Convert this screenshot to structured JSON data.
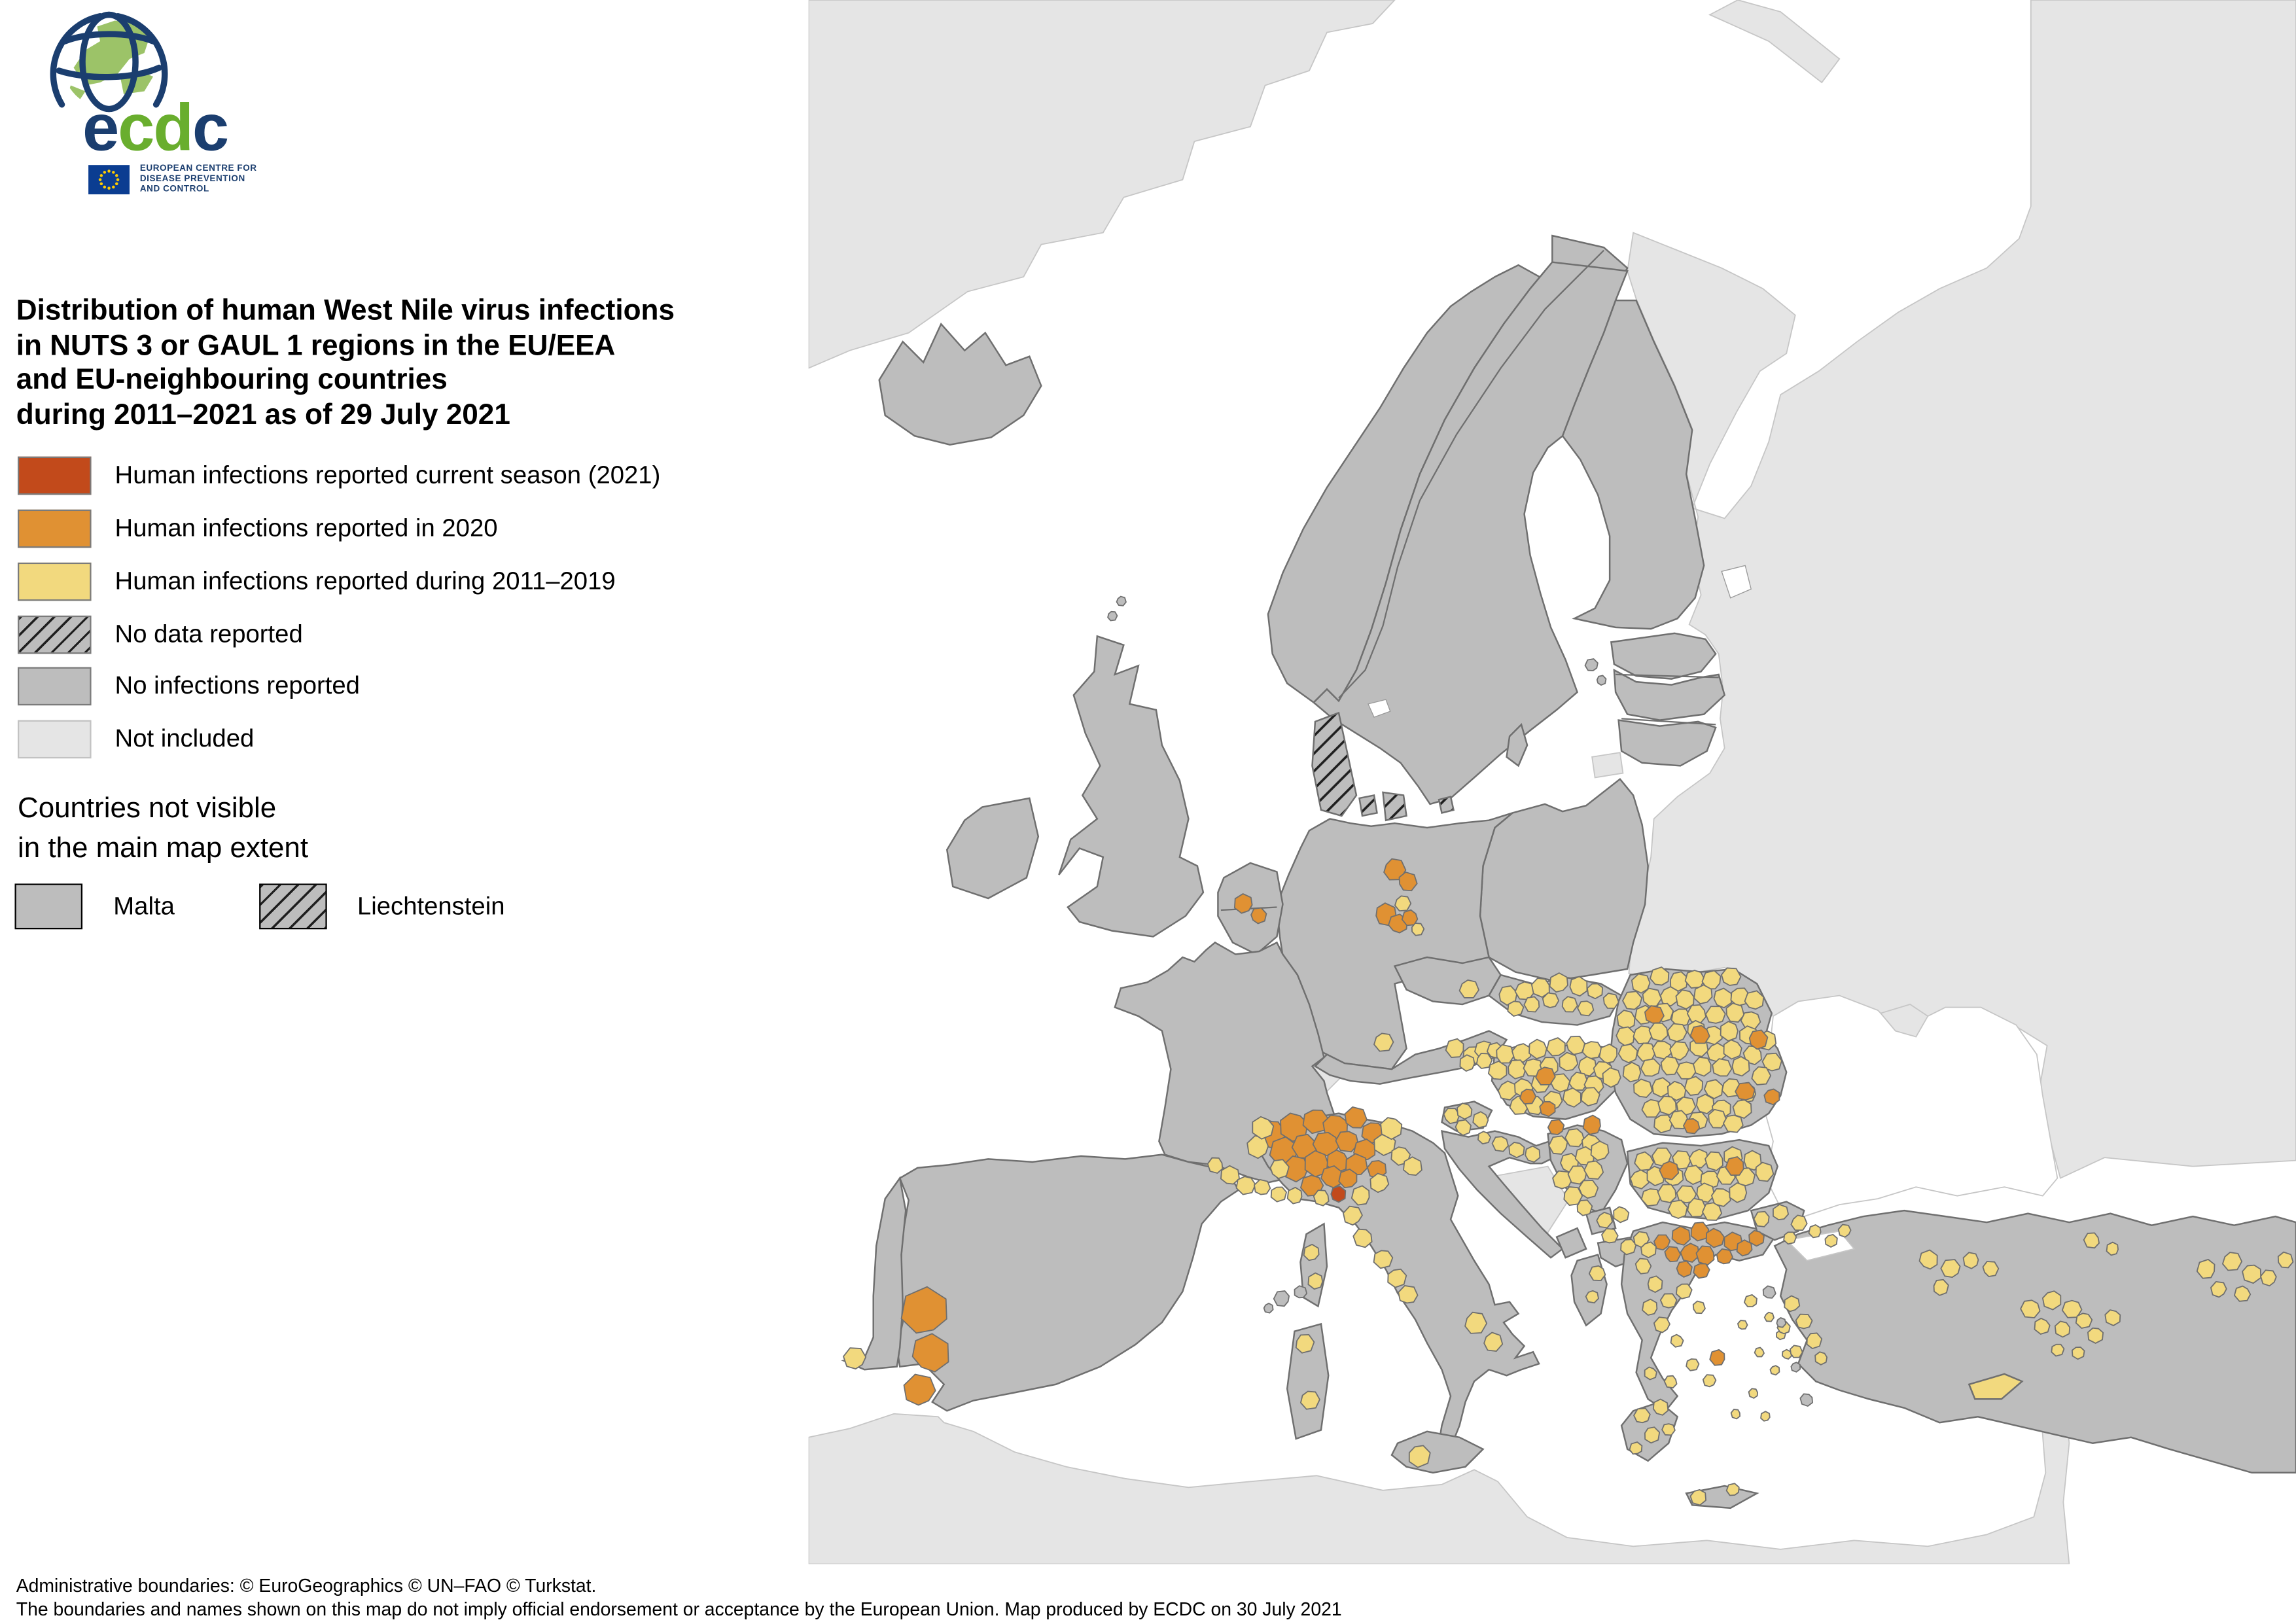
{
  "logo": {
    "letters": [
      "e",
      "c",
      "d",
      "c"
    ],
    "caption_lines": [
      "EUROPEAN CENTRE FOR",
      "DISEASE PREVENTION",
      "AND CONTROL"
    ]
  },
  "title": {
    "lines": [
      "Distribution of human West Nile virus infections",
      "in NUTS 3 or GAUL 1 regions in the EU/EEA",
      "and EU-neighbouring countries",
      "during 2011–2021 as of  29 July 2021"
    ]
  },
  "legend": {
    "items": [
      {
        "label": "Human infections reported current season (2021)",
        "status": "season_2021"
      },
      {
        "label": "Human infections reported in 2020",
        "status": "year_2020"
      },
      {
        "label": "Human infections reported during 2011–2019",
        "status": "y2011_2019"
      },
      {
        "label": "No data reported",
        "status": "no_data"
      },
      {
        "label": "No infections reported",
        "status": "no_infections"
      },
      {
        "label": "Not included",
        "status": "not_included"
      }
    ]
  },
  "inset": {
    "heading_lines": [
      "Countries not visible",
      "in the main map extent"
    ],
    "items": [
      {
        "label": "Malta",
        "status": "no_infections"
      },
      {
        "label": "Liechtenstein",
        "status": "no_data"
      }
    ]
  },
  "footer": {
    "line1": "Administrative boundaries: © EuroGeographics © UN–FAO © Turkstat.",
    "line2": "The boundaries and names shown on this map do not imply official endorsement or acceptance by the European Union. Map produced by ECDC on 30 July 2021"
  },
  "colors": {
    "season_2021": "#C24A1B",
    "year_2020": "#E09133",
    "y2011_2019": "#F2D97E",
    "no_data_fill": "#BDBDBD",
    "no_data_line": "#1f1f1f",
    "no_infections": "#BDBDBD",
    "not_included": "#E5E5E5",
    "sea": "#FFFFFF",
    "border": "#6F6F6F",
    "logo_navy": "#1B3E6F",
    "logo_green": "#69AE2E",
    "flag_blue": "#0B3D91",
    "flag_star": "#FFCC00"
  },
  "map": {
    "regions_by_status": {
      "season_2021": [
        "Italy (Ligurian coast region)"
      ],
      "year_2020": [
        "Spain (Andalusia/Extremadura)",
        "Netherlands",
        "Germany (east)",
        "Italy (Po valley)",
        "Hungary",
        "Serbia",
        "Romania",
        "Bulgaria",
        "Greece (north)"
      ],
      "y2011_2019": [
        "Portugal (Algarve)",
        "France (Mediterranean coast)",
        "Italy (scattered)",
        "Austria (east)",
        "Czechia (south)",
        "Slovakia",
        "Hungary",
        "Croatia",
        "Serbia",
        "Kosovo",
        "North Macedonia",
        "Albania",
        "Romania",
        "Bulgaria",
        "Greece",
        "Cyprus",
        "Turkey (scattered)"
      ],
      "no_data": [
        "Denmark",
        "Liechtenstein"
      ],
      "no_infections": [
        "Iceland",
        "Norway",
        "Sweden",
        "Finland",
        "United Kingdom",
        "Ireland",
        "Estonia",
        "Latvia",
        "Lithuania",
        "Poland",
        "Germany",
        "Netherlands",
        "Belgium",
        "Luxembourg",
        "France",
        "Spain",
        "Portugal",
        "Czechia",
        "Austria",
        "Slovenia",
        "Croatia",
        "Montenegro",
        "Albania",
        "Turkey",
        "Malta"
      ],
      "not_included": [
        "Greenland",
        "Russia",
        "Belarus",
        "Ukraine",
        "Moldova",
        "Switzerland",
        "Bosnia and Herzegovina",
        "Morocco",
        "Algeria",
        "Tunisia",
        "Libya",
        "Middle East"
      ]
    }
  }
}
